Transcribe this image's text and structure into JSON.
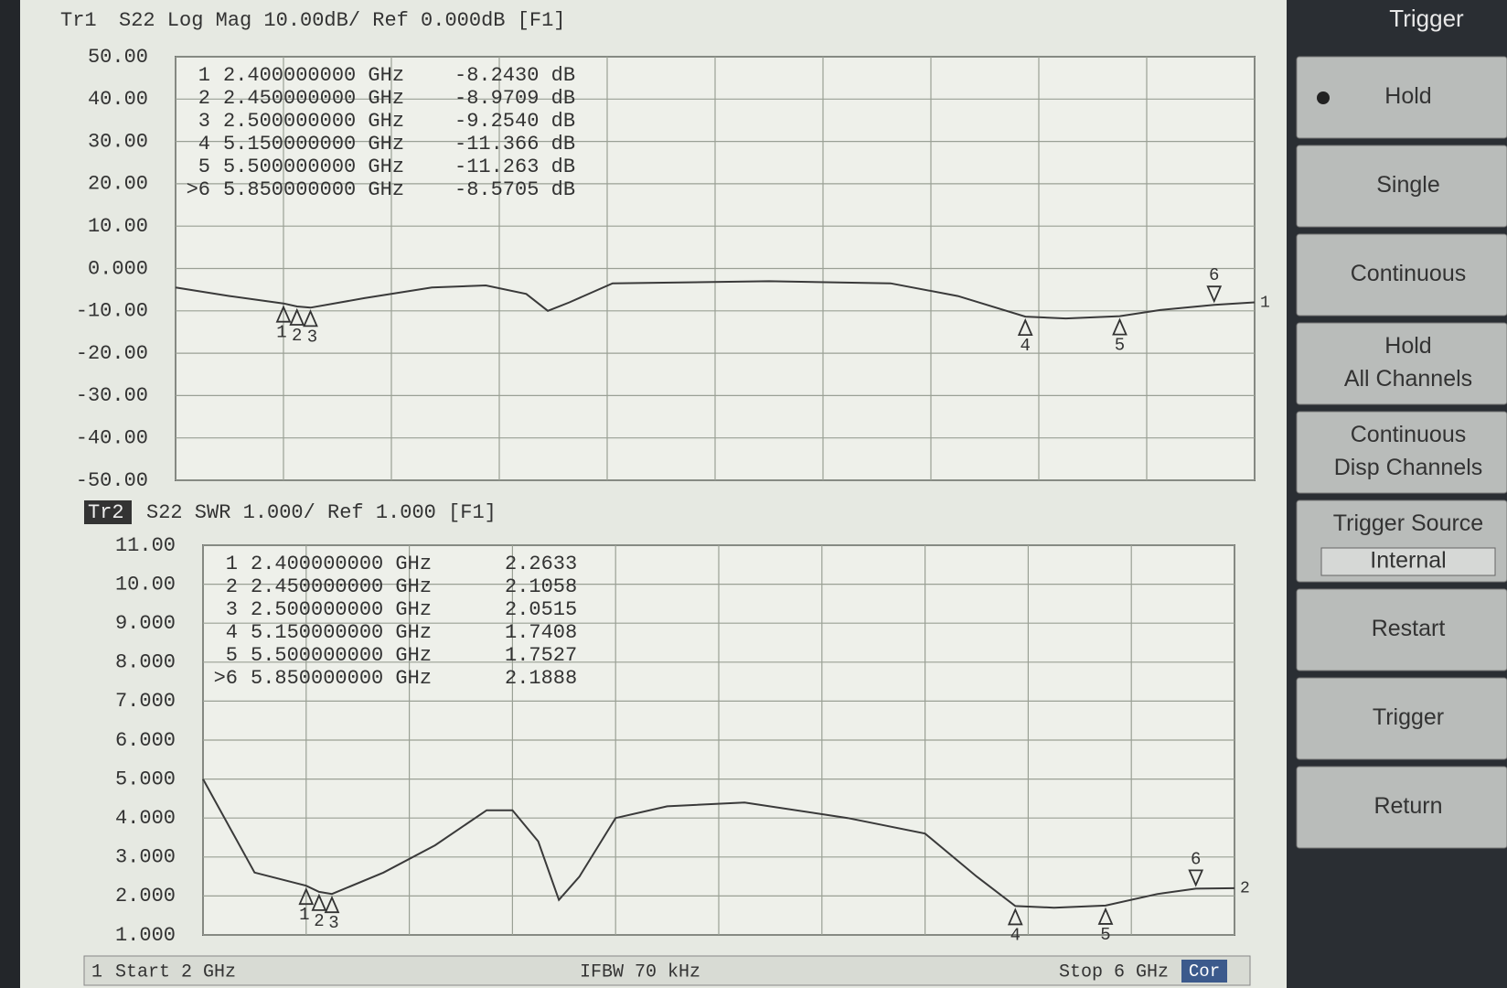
{
  "chart_data": [
    {
      "type": "line",
      "trace_label": "Tr1",
      "title": "S22  Log Mag 10.00dB/ Ref 0.000dB  [F1]",
      "trace_id": "1",
      "xlim": [
        2,
        6
      ],
      "xticks": [
        2,
        2.4,
        2.8,
        3.2,
        3.6,
        4,
        4.4,
        4.8,
        5.2,
        5.6,
        6
      ],
      "ylim": [
        -50,
        50
      ],
      "yticks": [
        {
          "value": 50,
          "label": "50.00"
        },
        {
          "value": 40,
          "label": "40.00"
        },
        {
          "value": 30,
          "label": "30.00"
        },
        {
          "value": 20,
          "label": "20.00"
        },
        {
          "value": 10,
          "label": "10.00"
        },
        {
          "value": 0,
          "label": "0.000"
        },
        {
          "value": -10,
          "label": "-10.00"
        },
        {
          "value": -20,
          "label": "-20.00"
        },
        {
          "value": -30,
          "label": "-30.00"
        },
        {
          "value": -40,
          "label": "-40.00"
        },
        {
          "value": -50,
          "label": "-50.00"
        }
      ],
      "grid": true,
      "color": "#3a3a3a",
      "trace": {
        "x": [
          2.0,
          2.2,
          2.4,
          2.45,
          2.5,
          2.7,
          2.95,
          3.15,
          3.3,
          3.38,
          3.46,
          3.62,
          4.2,
          4.65,
          4.9,
          5.15,
          5.3,
          5.5,
          5.65,
          5.85,
          6.0
        ],
        "values": [
          -4.5,
          -6.5,
          -8.243,
          -8.9709,
          -9.254,
          -7.0,
          -4.5,
          -4.0,
          -6.0,
          -10.0,
          -8.0,
          -3.5,
          -3.0,
          -3.5,
          -6.5,
          -11.366,
          -11.8,
          -11.263,
          -9.8,
          -8.5705,
          -8.0
        ]
      },
      "markers": {
        "ids": [
          "1",
          "2",
          "3",
          "4",
          "5",
          ">6"
        ],
        "names": [
          "1",
          "2",
          "3",
          "4",
          "5",
          "6"
        ],
        "x": [
          2.4,
          2.45,
          2.5,
          5.15,
          5.5,
          5.85
        ],
        "x_labels": [
          "2.400000000 GHz",
          "2.450000000 GHz",
          "2.500000000 GHz",
          "5.150000000 GHz",
          "5.500000000 GHz",
          "5.850000000 GHz"
        ],
        "values": [
          -8.243,
          -8.9709,
          -9.254,
          -11.366,
          -11.263,
          -8.5705
        ],
        "value_labels": [
          "-8.2430 dB",
          "-8.9709 dB",
          "-9.2540 dB",
          "-11.366 dB",
          "-11.263 dB",
          "-8.5705 dB"
        ]
      }
    },
    {
      "type": "line",
      "trace_label": "Tr2",
      "title": "S22  SWR 1.000/ Ref 1.000  [F1]",
      "trace_id": "2",
      "xlim": [
        2,
        6
      ],
      "xticks": [
        2,
        2.4,
        2.8,
        3.2,
        3.6,
        4,
        4.4,
        4.8,
        5.2,
        5.6,
        6
      ],
      "ylim": [
        1,
        11
      ],
      "yticks": [
        {
          "value": 11,
          "label": "11.00"
        },
        {
          "value": 10,
          "label": "10.00"
        },
        {
          "value": 9,
          "label": "9.000"
        },
        {
          "value": 8,
          "label": "8.000"
        },
        {
          "value": 7,
          "label": "7.000"
        },
        {
          "value": 6,
          "label": "6.000"
        },
        {
          "value": 5,
          "label": "5.000"
        },
        {
          "value": 4,
          "label": "4.000"
        },
        {
          "value": 3,
          "label": "3.000"
        },
        {
          "value": 2,
          "label": "2.000"
        },
        {
          "value": 1,
          "label": "1.000"
        }
      ],
      "grid": true,
      "color": "#3a3a3a",
      "trace": {
        "x": [
          2.0,
          2.2,
          2.4,
          2.45,
          2.5,
          2.7,
          2.9,
          3.1,
          3.2,
          3.3,
          3.38,
          3.46,
          3.6,
          3.8,
          4.1,
          4.5,
          4.8,
          5.0,
          5.15,
          5.3,
          5.5,
          5.7,
          5.85,
          6.0
        ],
        "values": [
          5.0,
          2.6,
          2.2633,
          2.1058,
          2.0515,
          2.6,
          3.3,
          4.2,
          4.2,
          3.4,
          1.9,
          2.5,
          4.0,
          4.3,
          4.4,
          4.0,
          3.6,
          2.5,
          1.7408,
          1.7,
          1.7527,
          2.05,
          2.1888,
          2.2
        ]
      },
      "markers": {
        "ids": [
          "1",
          "2",
          "3",
          "4",
          "5",
          ">6"
        ],
        "names": [
          "1",
          "2",
          "3",
          "4",
          "5",
          "6"
        ],
        "x": [
          2.4,
          2.45,
          2.5,
          5.15,
          5.5,
          5.85
        ],
        "x_labels": [
          "2.400000000 GHz",
          "2.450000000 GHz",
          "2.500000000 GHz",
          "5.150000000 GHz",
          "5.500000000 GHz",
          "5.850000000 GHz"
        ],
        "values": [
          2.2633,
          2.1058,
          2.0515,
          1.7408,
          1.7527,
          2.1888
        ]
      }
    }
  ],
  "softkeys": {
    "header": "Trigger",
    "items": [
      {
        "lines": [
          "Hold"
        ]
      },
      {
        "lines": [
          "Single"
        ]
      },
      {
        "lines": [
          "Continuous"
        ]
      },
      {
        "lines": [
          "Hold",
          "All Channels"
        ]
      },
      {
        "lines": [
          "Continuous",
          "Disp Channels"
        ]
      },
      {
        "lines": [
          "Trigger Source"
        ],
        "value": "Internal"
      },
      {
        "lines": [
          "Restart"
        ]
      },
      {
        "lines": [
          "Trigger"
        ]
      },
      {
        "lines": [
          "Return"
        ]
      }
    ]
  },
  "status_bar": {
    "channel": "1",
    "start": "Start 2 GHz",
    "ifbw": "IFBW 70 kHz",
    "stop": "Stop 6 GHz",
    "cor": "Cor"
  }
}
